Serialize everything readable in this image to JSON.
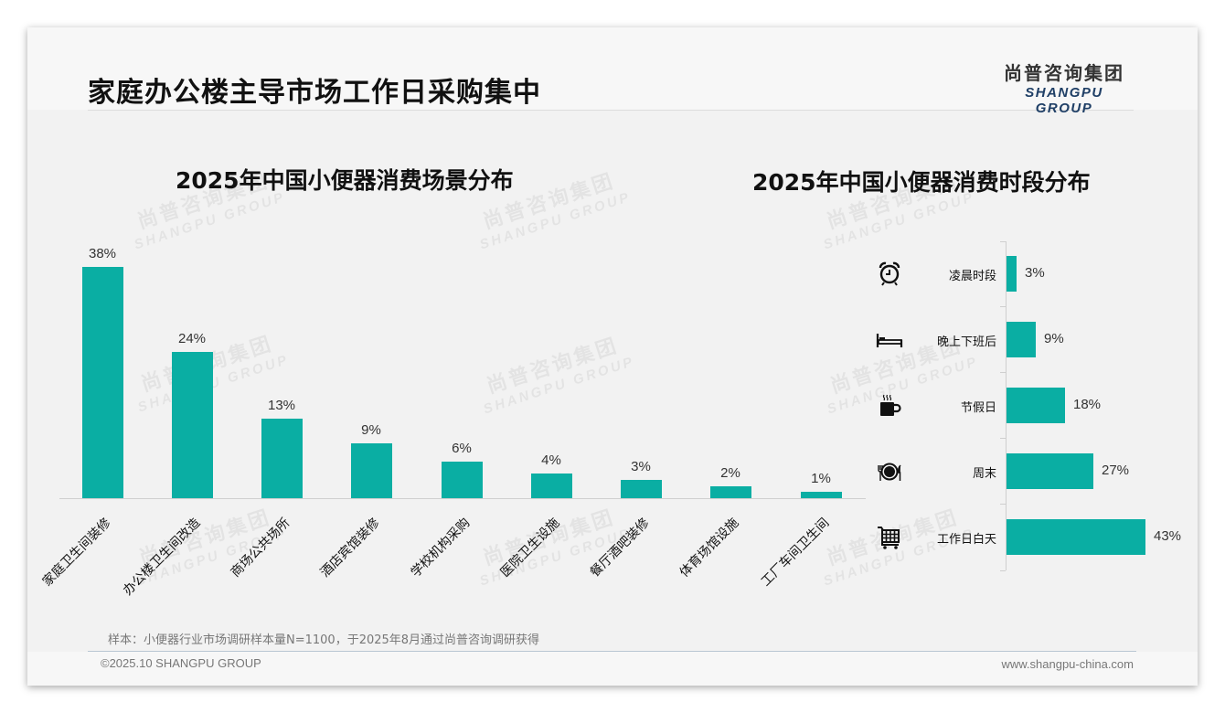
{
  "header": {
    "title": "家庭办公楼主导市场工作日采购集中",
    "logo_cn": "尚普咨询集团",
    "logo_en": "SHANGPU GROUP"
  },
  "watermark": {
    "cn": "尚普咨询集团",
    "en": "SHANGPU GROUP"
  },
  "colors": {
    "bar": "#0aaea3",
    "logo_en": "#1f3f66"
  },
  "chart_data": [
    {
      "type": "bar",
      "title": "2025年中国小便器消费场景分布",
      "categories": [
        "家庭卫生间装修",
        "办公楼卫生间改造",
        "商场公共场所",
        "酒店宾馆装修",
        "学校机构采购",
        "医院卫生设施",
        "餐厅酒吧装修",
        "体育场馆设施",
        "工厂车间卫生间"
      ],
      "values": [
        38,
        24,
        13,
        9,
        6,
        4,
        3,
        2,
        1
      ],
      "value_labels": [
        "38%",
        "24%",
        "13%",
        "9%",
        "6%",
        "4%",
        "3%",
        "2%",
        "1%"
      ],
      "xlabel": "",
      "ylabel": "",
      "unit": "%",
      "grid": false,
      "legend": "none"
    },
    {
      "type": "bar",
      "orientation": "horizontal",
      "title": "2025年中国小便器消费时段分布",
      "categories": [
        "凌晨时段",
        "晚上下班后",
        "节假日",
        "周末",
        "工作日白天"
      ],
      "icons": [
        "alarm-clock-icon",
        "bed-icon",
        "coffee-mug-icon",
        "plate-cutlery-icon",
        "shopping-cart-icon"
      ],
      "values": [
        3,
        9,
        18,
        27,
        43
      ],
      "value_labels": [
        "3%",
        "9%",
        "18%",
        "27%",
        "43%"
      ],
      "unit": "%",
      "grid": false,
      "legend": "none"
    }
  ],
  "footer": {
    "sample": "样本：小便器行业市场调研样本量N=1100，于2025年8月通过尚普咨询调研获得",
    "copyright": "©2025.10 SHANGPU GROUP",
    "website": "www.shangpu-china.com"
  }
}
